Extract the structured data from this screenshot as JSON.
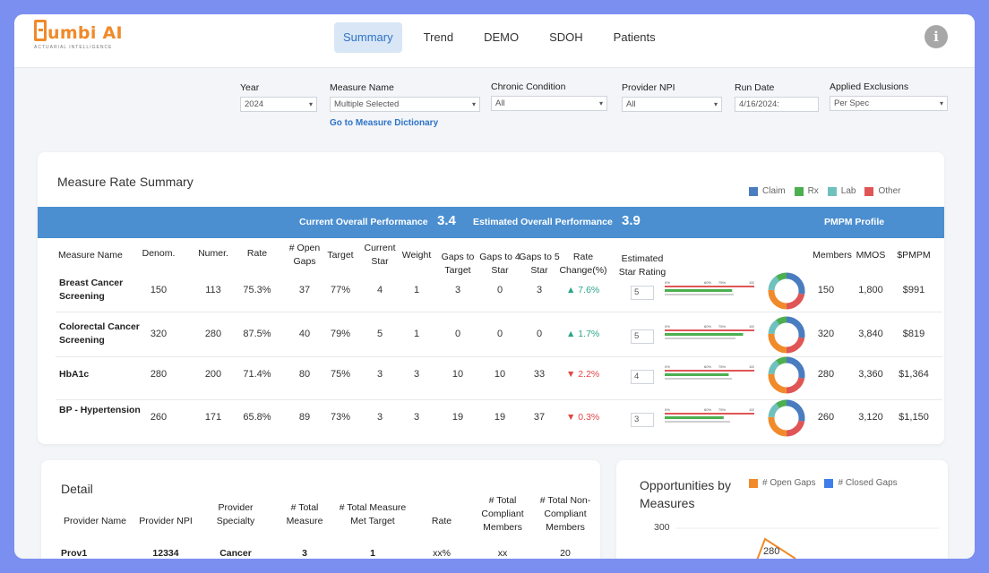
{
  "header": {
    "logo_text": "umbi AI",
    "logo_sub": "ACTUARIAL INTELLIGENCE",
    "nav": [
      "Summary",
      "Trend",
      "DEMO",
      "SDOH",
      "Patients"
    ],
    "active_nav": "Summary",
    "info_icon": "i"
  },
  "filters": {
    "year": {
      "label": "Year",
      "value": "2024"
    },
    "measure_name": {
      "label": "Measure Name",
      "value": "Multiple Selected",
      "link": "Go to Measure Dictionary"
    },
    "chronic_condition": {
      "label": "Chronic Condition",
      "value": "All"
    },
    "provider_npi": {
      "label": "Provider NPI",
      "value": "All"
    },
    "run_date": {
      "label": "Run Date",
      "value": "4/16/2024:"
    },
    "applied_exclusions": {
      "label": "Applied Exclusions",
      "value": "Per Spec"
    }
  },
  "summary": {
    "title": "Measure Rate Summary",
    "legend": [
      {
        "name": "Claim",
        "color": "#4a7cc0"
      },
      {
        "name": "Rx",
        "color": "#4caf50"
      },
      {
        "name": "Lab",
        "color": "#6fc1bd"
      },
      {
        "name": "Other",
        "color": "#e05555"
      }
    ],
    "current_label": "Current Overall Performance",
    "current_value": "3.4",
    "estimated_label": "Estimated Overall Performance",
    "estimated_value": "3.9",
    "pmpm_label": "PMPM Profile",
    "columns": {
      "measure": "Measure Name",
      "denom": "Denom.",
      "numer": "Numer.",
      "rate": "Rate",
      "open_gaps": "# Open Gaps",
      "target": "Target",
      "current_star": "Current Star",
      "weight": "Weight",
      "gaps_target": "Gaps to Target",
      "gaps4": "Gaps to 4 Star",
      "gaps5": "Gaps to 5 Star",
      "rate_change": "Rate Change(%)",
      "est_rating": "Estimated Star Rating",
      "members": "Members",
      "mmos": "MMOS",
      "pmpm": "$PMPM"
    },
    "bar_ticks": [
      "0%",
      "60%",
      "75%",
      "100%"
    ],
    "rows": [
      {
        "name": "Breast Cancer Screening",
        "denom": "150",
        "numer": "113",
        "rate": "75.3%",
        "open_gaps": "37",
        "target": "77%",
        "current_star": "4",
        "weight": "1",
        "gaps_target": "3",
        "gaps4": "0",
        "gaps5": "3",
        "dir": "up",
        "change": "7.6%",
        "est": "5",
        "members": "150",
        "mmos": "1,800",
        "pmpm": "$991"
      },
      {
        "name": "Colorectal Cancer Screening",
        "denom": "320",
        "numer": "280",
        "rate": "87.5%",
        "open_gaps": "40",
        "target": "79%",
        "current_star": "5",
        "weight": "1",
        "gaps_target": "0",
        "gaps4": "0",
        "gaps5": "0",
        "dir": "up",
        "change": "1.7%",
        "est": "5",
        "members": "320",
        "mmos": "3,840",
        "pmpm": "$819"
      },
      {
        "name": "HbA1c",
        "denom": "280",
        "numer": "200",
        "rate": "71.4%",
        "open_gaps": "80",
        "target": "75%",
        "current_star": "3",
        "weight": "3",
        "gaps_target": "10",
        "gaps4": "10",
        "gaps5": "33",
        "dir": "down",
        "change": "2.2%",
        "est": "4",
        "members": "280",
        "mmos": "3,360",
        "pmpm": "$1,364"
      },
      {
        "name": "BP - Hypertension",
        "denom": "260",
        "numer": "171",
        "rate": "65.8%",
        "open_gaps": "89",
        "target": "73%",
        "current_star": "3",
        "weight": "3",
        "gaps_target": "19",
        "gaps4": "19",
        "gaps5": "37",
        "dir": "down",
        "change": "0.3%",
        "est": "3",
        "members": "260",
        "mmos": "3,120",
        "pmpm": "$1,150"
      }
    ]
  },
  "detail": {
    "title": "Detail",
    "columns": [
      "Provider Name",
      "Provider NPI",
      "Provider Specialty",
      "# Total Measure",
      "# Total Measure Met Target",
      "Rate",
      "# Total Compliant Members",
      "# Total Non-Compliant Members"
    ],
    "rows": [
      [
        "Prov1",
        "12334",
        "Cancer",
        "3",
        "1",
        "xx%",
        "xx",
        "20"
      ]
    ]
  },
  "opportunities": {
    "title": "Opportunities by Measures",
    "legend": [
      {
        "name": "# Open Gaps",
        "color": "#f08a2a"
      },
      {
        "name": "# Closed Gaps",
        "color": "#3f7ee8"
      }
    ],
    "chart_data": {
      "type": "line",
      "y_tick_visible": "300",
      "point_label": "280"
    }
  }
}
